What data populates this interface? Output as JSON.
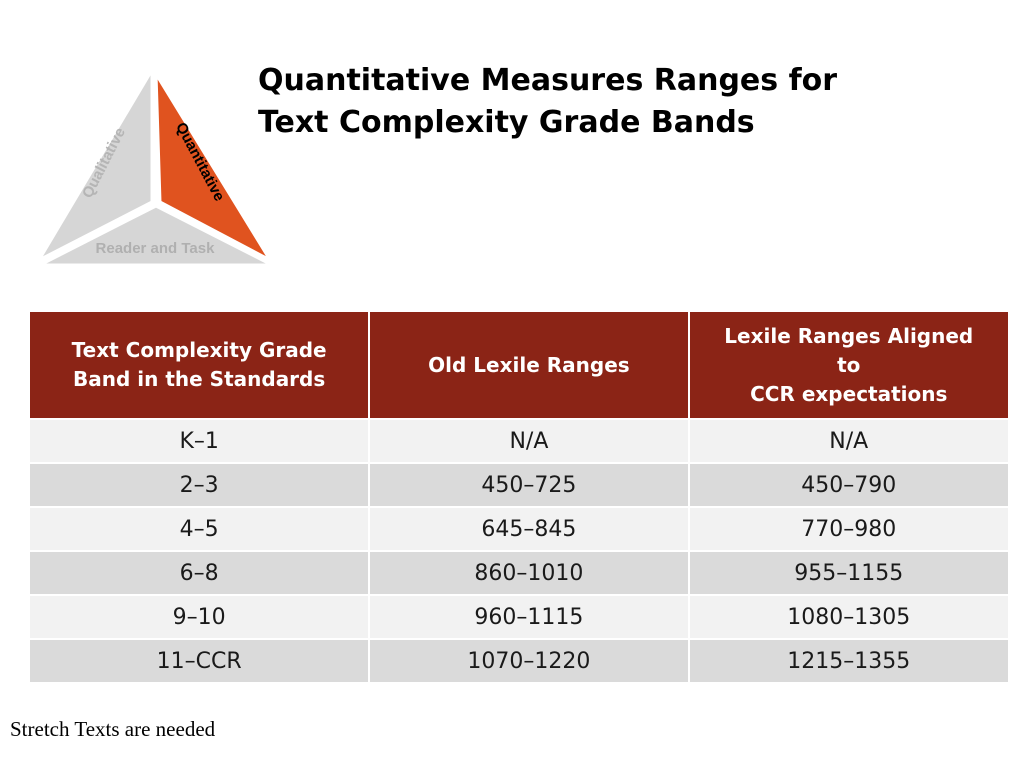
{
  "logo": {
    "labels": {
      "qualitative": "Qualitative",
      "quantitative": "Quantitative",
      "reader_task": "Reader and Task"
    },
    "colors": {
      "accent": "#e0531f",
      "gray": "#d6d6d6",
      "gray_text": "#b5b5b5"
    }
  },
  "title": {
    "line1": "Quantitative Measures Ranges for",
    "line2": "Text Complexity Grade Bands"
  },
  "table": {
    "headers": [
      [
        "Text Complexity Grade",
        "Band in the Standards"
      ],
      [
        "Old Lexile Ranges"
      ],
      [
        "Lexile Ranges Aligned",
        "to",
        "CCR expectations"
      ]
    ],
    "rows": [
      [
        "K–1",
        "N/A",
        "N/A"
      ],
      [
        "2–3",
        "450–725",
        "450–790"
      ],
      [
        "4–5",
        "645–845",
        "770–980"
      ],
      [
        "6–8",
        "860–1010",
        "955–1155"
      ],
      [
        "9–10",
        "960–1115",
        "1080–1305"
      ],
      [
        "11–CCR",
        "1070–1220",
        "1215–1355"
      ]
    ],
    "colors": {
      "header_bg": "#8b2416",
      "row_light": "#f2f2f2",
      "row_dark": "#dadada"
    }
  },
  "footnote": "Stretch Texts are needed"
}
